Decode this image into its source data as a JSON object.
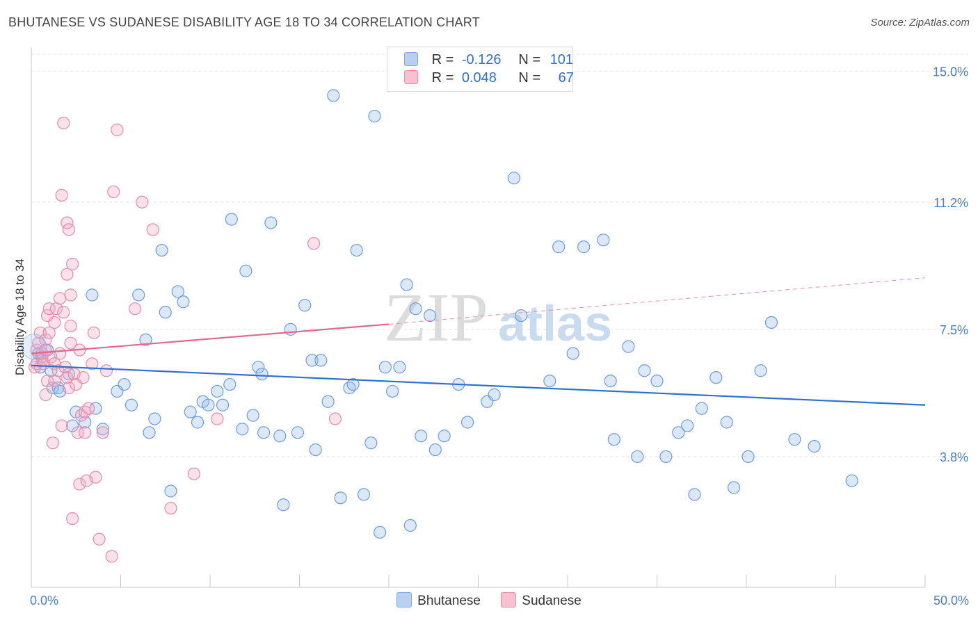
{
  "title": "BHUTANESE VS SUDANESE DISABILITY AGE 18 TO 34 CORRELATION CHART",
  "source": "Source: ZipAtlas.com",
  "watermark": {
    "zip": "ZIP",
    "atlas": "atlas"
  },
  "legend": {
    "r_label": "R =",
    "n_label": "N =",
    "rows": [
      {
        "name": "Bhutanese",
        "r": "-0.126",
        "n": "101",
        "color": "#7fa7e0",
        "fill": "#b9d0f2"
      },
      {
        "name": "Sudanese",
        "r": "0.048",
        "n": "67",
        "color": "#e98bab",
        "fill": "#f7c1d2"
      }
    ]
  },
  "chart_data": {
    "type": "scatter",
    "title": "BHUTANESE VS SUDANESE DISABILITY AGE 18 TO 34 CORRELATION CHART",
    "xlabel": "",
    "ylabel": "Disability Age 18 to 34",
    "xlim": [
      0,
      50
    ],
    "ylim": [
      0,
      15.5
    ],
    "x_tick_labels": [
      "0.0%",
      "50.0%"
    ],
    "y_ticks": [
      3.8,
      7.5,
      11.2,
      15.0
    ],
    "y_tick_labels": [
      "3.8%",
      "7.5%",
      "11.2%",
      "15.0%"
    ],
    "grid": true,
    "series": [
      {
        "name": "Bhutanese",
        "color": "#6c9be0",
        "fill": "rgba(150,188,238,0.35)",
        "trend": {
          "x": [
            0,
            50
          ],
          "y": [
            6.45,
            5.3
          ],
          "color": "#2f6fd0"
        },
        "points": [
          [
            0.4,
            6.8
          ],
          [
            0.5,
            6.4
          ],
          [
            0.6,
            6.7
          ],
          [
            0.9,
            6.9
          ],
          [
            1.1,
            6.3
          ],
          [
            1.2,
            5.8
          ],
          [
            1.5,
            5.8
          ],
          [
            1.6,
            5.7
          ],
          [
            2.1,
            6.2
          ],
          [
            2.3,
            4.7
          ],
          [
            2.5,
            5.1
          ],
          [
            3.0,
            4.8
          ],
          [
            3.4,
            8.5
          ],
          [
            3.6,
            5.2
          ],
          [
            4.0,
            4.6
          ],
          [
            4.8,
            5.7
          ],
          [
            5.2,
            5.9
          ],
          [
            5.6,
            5.3
          ],
          [
            6.0,
            8.5
          ],
          [
            6.4,
            7.2
          ],
          [
            6.6,
            4.5
          ],
          [
            6.9,
            4.9
          ],
          [
            7.3,
            9.8
          ],
          [
            7.5,
            8.0
          ],
          [
            7.8,
            2.8
          ],
          [
            8.2,
            8.6
          ],
          [
            8.5,
            8.3
          ],
          [
            8.9,
            5.1
          ],
          [
            9.3,
            4.8
          ],
          [
            9.6,
            5.4
          ],
          [
            9.9,
            5.3
          ],
          [
            10.4,
            5.7
          ],
          [
            10.7,
            5.3
          ],
          [
            11.1,
            5.9
          ],
          [
            11.2,
            10.7
          ],
          [
            11.8,
            4.6
          ],
          [
            12.0,
            9.2
          ],
          [
            12.4,
            5.0
          ],
          [
            12.7,
            6.4
          ],
          [
            12.9,
            6.2
          ],
          [
            13.0,
            4.5
          ],
          [
            13.4,
            10.6
          ],
          [
            13.9,
            4.4
          ],
          [
            14.1,
            2.4
          ],
          [
            14.5,
            7.5
          ],
          [
            14.9,
            4.5
          ],
          [
            15.3,
            8.2
          ],
          [
            15.7,
            6.6
          ],
          [
            15.9,
            4.0
          ],
          [
            16.2,
            6.6
          ],
          [
            16.6,
            5.4
          ],
          [
            16.9,
            14.3
          ],
          [
            17.3,
            2.6
          ],
          [
            17.8,
            5.8
          ],
          [
            18.0,
            5.9
          ],
          [
            18.2,
            9.8
          ],
          [
            18.6,
            2.7
          ],
          [
            19.0,
            4.2
          ],
          [
            19.2,
            13.7
          ],
          [
            19.5,
            1.6
          ],
          [
            19.8,
            6.4
          ],
          [
            20.2,
            5.7
          ],
          [
            20.6,
            6.4
          ],
          [
            21.0,
            8.8
          ],
          [
            21.2,
            1.8
          ],
          [
            21.5,
            8.1
          ],
          [
            21.8,
            4.4
          ],
          [
            22.3,
            7.9
          ],
          [
            22.6,
            4.0
          ],
          [
            23.1,
            4.4
          ],
          [
            23.9,
            5.9
          ],
          [
            24.4,
            4.8
          ],
          [
            25.5,
            5.4
          ],
          [
            25.9,
            5.6
          ],
          [
            27.0,
            11.9
          ],
          [
            27.4,
            7.9
          ],
          [
            29.0,
            6.0
          ],
          [
            29.5,
            9.9
          ],
          [
            30.3,
            6.8
          ],
          [
            30.9,
            9.9
          ],
          [
            32.0,
            10.1
          ],
          [
            32.4,
            6.0
          ],
          [
            32.6,
            4.3
          ],
          [
            33.4,
            7.0
          ],
          [
            33.9,
            3.8
          ],
          [
            34.3,
            6.3
          ],
          [
            35.0,
            6.0
          ],
          [
            35.5,
            3.8
          ],
          [
            36.2,
            4.5
          ],
          [
            36.7,
            4.7
          ],
          [
            37.1,
            2.7
          ],
          [
            37.5,
            5.2
          ],
          [
            38.3,
            6.1
          ],
          [
            38.9,
            4.8
          ],
          [
            39.3,
            2.9
          ],
          [
            40.1,
            3.8
          ],
          [
            40.8,
            6.3
          ],
          [
            41.4,
            7.7
          ],
          [
            42.7,
            4.3
          ],
          [
            43.8,
            4.1
          ],
          [
            45.9,
            3.1
          ]
        ]
      },
      {
        "name": "Sudanese",
        "color": "#e58bab",
        "fill": "rgba(244,170,196,0.35)",
        "trend": {
          "x": [
            0,
            20
          ],
          "y": [
            6.8,
            7.65
          ],
          "color": "#e0688f"
        },
        "trend_dashed": {
          "x": [
            20,
            50
          ],
          "y": [
            7.65,
            9.0
          ],
          "color": "#e58bab"
        },
        "points": [
          [
            0.2,
            6.4
          ],
          [
            0.3,
            6.9
          ],
          [
            0.3,
            6.5
          ],
          [
            0.4,
            7.1
          ],
          [
            0.5,
            7.4
          ],
          [
            0.6,
            6.6
          ],
          [
            0.6,
            6.8
          ],
          [
            0.7,
            6.5
          ],
          [
            0.8,
            7.2
          ],
          [
            0.8,
            6.9
          ],
          [
            0.8,
            5.6
          ],
          [
            0.9,
            7.9
          ],
          [
            0.9,
            6.0
          ],
          [
            1.0,
            7.4
          ],
          [
            1.0,
            8.1
          ],
          [
            1.1,
            6.7
          ],
          [
            1.2,
            4.2
          ],
          [
            1.3,
            6.5
          ],
          [
            1.3,
            7.7
          ],
          [
            1.3,
            6.0
          ],
          [
            1.4,
            8.1
          ],
          [
            1.5,
            6.3
          ],
          [
            1.6,
            6.8
          ],
          [
            1.6,
            8.4
          ],
          [
            1.7,
            4.7
          ],
          [
            1.7,
            11.4
          ],
          [
            1.8,
            13.5
          ],
          [
            1.8,
            8.0
          ],
          [
            1.9,
            6.4
          ],
          [
            2.0,
            6.1
          ],
          [
            2.0,
            10.6
          ],
          [
            2.0,
            9.1
          ],
          [
            2.1,
            10.4
          ],
          [
            2.1,
            5.8
          ],
          [
            2.2,
            8.5
          ],
          [
            2.2,
            7.6
          ],
          [
            2.2,
            7.1
          ],
          [
            2.3,
            9.4
          ],
          [
            2.3,
            2.0
          ],
          [
            2.4,
            6.2
          ],
          [
            2.5,
            5.9
          ],
          [
            2.6,
            4.5
          ],
          [
            2.7,
            6.9
          ],
          [
            2.7,
            3.0
          ],
          [
            2.8,
            5.0
          ],
          [
            2.9,
            6.1
          ],
          [
            3.0,
            5.1
          ],
          [
            3.0,
            4.5
          ],
          [
            3.1,
            3.1
          ],
          [
            3.2,
            5.2
          ],
          [
            3.4,
            6.5
          ],
          [
            3.5,
            7.4
          ],
          [
            3.6,
            3.2
          ],
          [
            3.8,
            1.4
          ],
          [
            4.0,
            4.5
          ],
          [
            4.2,
            6.3
          ],
          [
            4.5,
            0.9
          ],
          [
            4.6,
            11.5
          ],
          [
            4.8,
            13.3
          ],
          [
            5.8,
            8.1
          ],
          [
            6.2,
            11.2
          ],
          [
            6.8,
            10.4
          ],
          [
            7.8,
            2.3
          ],
          [
            9.1,
            3.3
          ],
          [
            10.4,
            4.9
          ],
          [
            15.8,
            10.0
          ],
          [
            17.0,
            4.9
          ]
        ]
      }
    ]
  }
}
